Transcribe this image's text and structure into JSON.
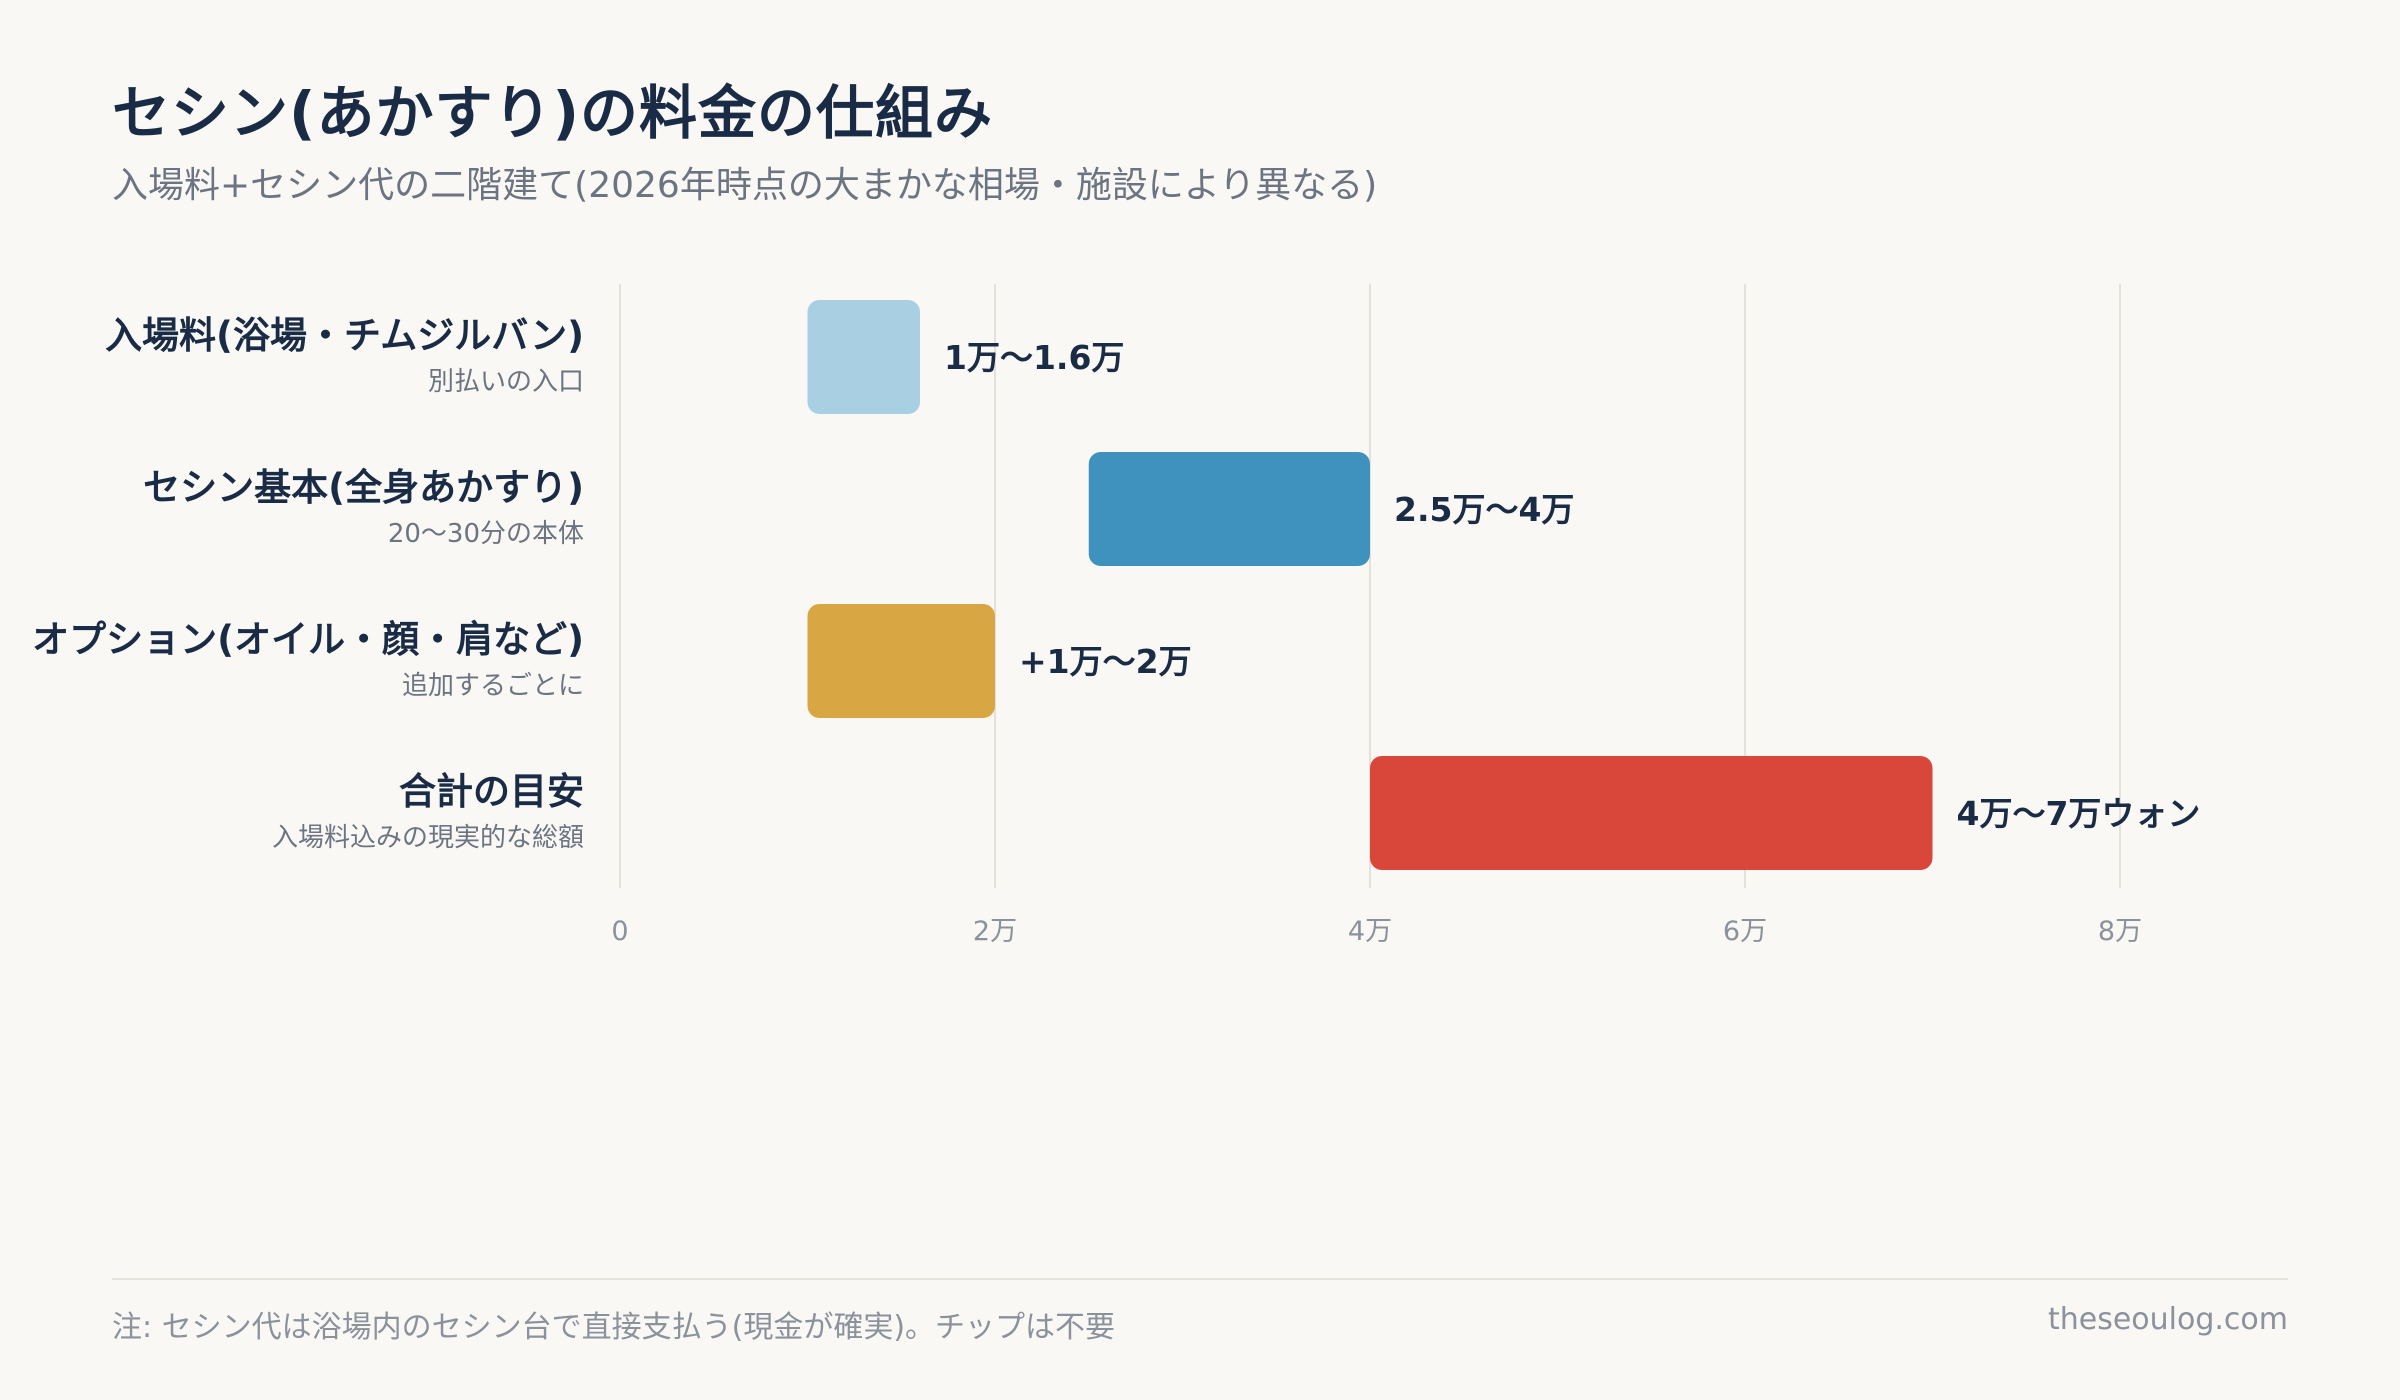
{
  "header": {
    "title": "セシン(あかすり)の料金の仕組み",
    "subtitle": "入場料+セシン代の二階建て(2026年時点の大まかな相場・施設により異なる)"
  },
  "chart_data": {
    "type": "bar",
    "orientation": "horizontal",
    "style": "floating-range",
    "categories": [
      {
        "label": "入場料(浴場・チムジルバン)",
        "sublabel": "別払いの入口",
        "start": 1.0,
        "end": 1.6,
        "value_label": "1万〜1.6万",
        "color": "#a9cfe3"
      },
      {
        "label": "セシン基本(全身あかすり)",
        "sublabel": "20〜30分の本体",
        "start": 2.5,
        "end": 4.0,
        "value_label": "2.5万〜4万",
        "color": "#3f92bd"
      },
      {
        "label": "オプション(オイル・顔・肩など)",
        "sublabel": "追加するごとに",
        "start": 1.0,
        "end": 2.0,
        "value_label": "+1万〜2万",
        "color": "#d8a642"
      },
      {
        "label": "合計の目安",
        "sublabel": "入場料込みの現実的な総額",
        "start": 4.0,
        "end": 7.0,
        "value_label": "4万〜7万ウォン",
        "color": "#d9473b"
      }
    ],
    "xlim": [
      0,
      8
    ],
    "x_ticks": [
      {
        "value": 0,
        "label": "0"
      },
      {
        "value": 2,
        "label": "2万"
      },
      {
        "value": 4,
        "label": "4万"
      },
      {
        "value": 6,
        "label": "6万"
      },
      {
        "value": 8,
        "label": "8万"
      }
    ],
    "grid": true,
    "xlabel": "",
    "ylabel": ""
  },
  "footer": {
    "note": "注: セシン代は浴場内のセシン台で直接支払う(現金が確実)。チップは不要",
    "source": "theseoulog.com"
  }
}
